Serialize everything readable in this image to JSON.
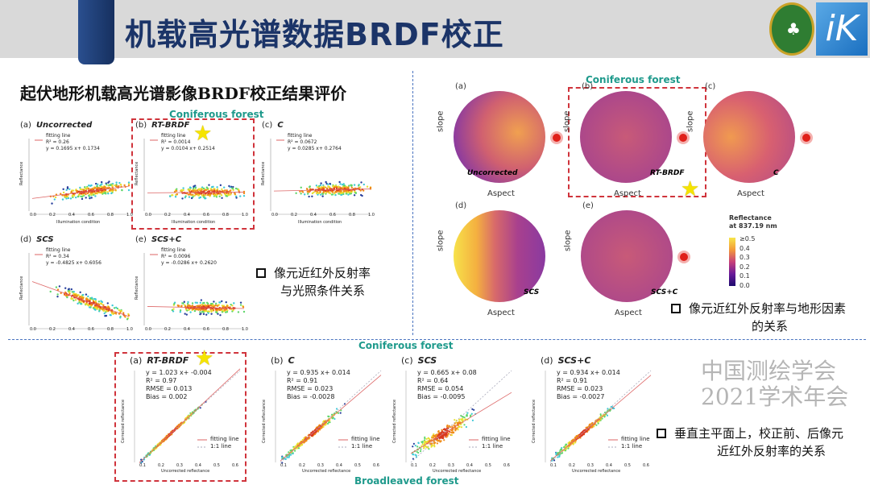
{
  "header": {
    "title": "机载高光谱数据BRDF校正",
    "logo_left": "CHINESE ACADEMY OF FORESTRY",
    "logo_right": "iK"
  },
  "subtitle": "起伏地形机载高光谱影像BRDF校正结果评价",
  "left_panel": {
    "group_label": "Coniferous forest",
    "x_label": "Illumination condition",
    "y_label": "Reflectance",
    "plots": [
      {
        "id": "(a)",
        "method": "Uncorrected",
        "legend": "fitting line",
        "r2": "R² = 0.26",
        "eq": "y = 0.1695 x+ 0.1734",
        "slope": 0.1695,
        "icpt": 0.1734
      },
      {
        "id": "(b)",
        "method": "RT-BRDF",
        "legend": "fitting line",
        "r2": "R² = 0.0014",
        "eq": "y = 0.0104 x+ 0.2514",
        "slope": 0.0104,
        "icpt": 0.2514
      },
      {
        "id": "(c)",
        "method": "C",
        "legend": "fitting line",
        "r2": "R² = 0.0672",
        "eq": "y = 0.0285 x+ 0.2764",
        "slope": 0.0285,
        "icpt": 0.2764
      },
      {
        "id": "(d)",
        "method": "SCS",
        "legend": "fitting line",
        "r2": "R² = 0.34",
        "eq": "y = -0.4825 x+ 0.6056",
        "slope": -0.4825,
        "icpt": 0.6056
      },
      {
        "id": "(e)",
        "method": "SCS+C",
        "legend": "fitting line",
        "r2": "R² = 0.0096",
        "eq": "y = -0.0286 x+ 0.2620",
        "slope": -0.0286,
        "icpt": 0.262
      }
    ],
    "x_ticks": [
      "0.0",
      "0.2",
      "0.4",
      "0.6",
      "0.8",
      "1.0"
    ],
    "note_line1": "像元近红外反射率",
    "note_line2": "与光照条件关系"
  },
  "right_panel": {
    "group_label": "Coniferous forest",
    "axis_slope": "slope",
    "axis_aspect": "Aspect",
    "plots": [
      {
        "id": "(a)",
        "method": "Uncorrected"
      },
      {
        "id": "(b)",
        "method": "RT-BRDF"
      },
      {
        "id": "(c)",
        "method": "C"
      },
      {
        "id": "(d)",
        "method": "SCS"
      },
      {
        "id": "(e)",
        "method": "SCS+C"
      }
    ],
    "colorbar": {
      "title1": "Reflectance",
      "title2": "at 837.19 nm",
      "ticks": [
        "≥0.5",
        "0.4",
        "0.3",
        "0.2",
        "0.1",
        "0.0"
      ]
    },
    "note_line1": "像元近红外反射率与地形因素",
    "note_line2": "的关系"
  },
  "bottom_panel": {
    "top_label": "Coniferous forest",
    "bottom_label": "Broadleaved forest",
    "x_label": "Uncorrected reflectance",
    "y_label": "Corrected reflectance",
    "legend_fit": "fitting line",
    "legend_11": "1:1 line",
    "x_ticks": [
      "0.1",
      "0.2",
      "0.3",
      "0.4",
      "0.5",
      "0.6"
    ],
    "plots": [
      {
        "id": "(a)",
        "method": "RT-BRDF",
        "eq": "y = 1.023 x+ -0.004",
        "r2": "R² = 0.97",
        "rmse": "RMSE = 0.013",
        "bias": "Bias = 0.002",
        "slope": 1.023,
        "icpt": -0.004
      },
      {
        "id": "(b)",
        "method": "C",
        "eq": "y = 0.935 x+ 0.014",
        "r2": "R² = 0.91",
        "rmse": "RMSE = 0.023",
        "bias": "Bias = -0.0028",
        "slope": 0.935,
        "icpt": 0.014
      },
      {
        "id": "(c)",
        "method": "SCS",
        "eq": "y = 0.665 x+ 0.08",
        "r2": "R² = 0.64",
        "rmse": "RMSE = 0.054",
        "bias": "Bias = -0.0095",
        "slope": 0.665,
        "icpt": 0.08
      },
      {
        "id": "(d)",
        "method": "SCS+C",
        "eq": "y = 0.934 x+ 0.014",
        "r2": "R² = 0.91",
        "rmse": "RMSE = 0.023",
        "bias": "Bias = -0.0027",
        "slope": 0.934,
        "icpt": 0.014
      }
    ],
    "note_line1": "垂直主平面上，校正前、后像元",
    "note_line2": "近红外反射率的关系"
  },
  "watermark": "中国测绘学会2021学术年会"
}
